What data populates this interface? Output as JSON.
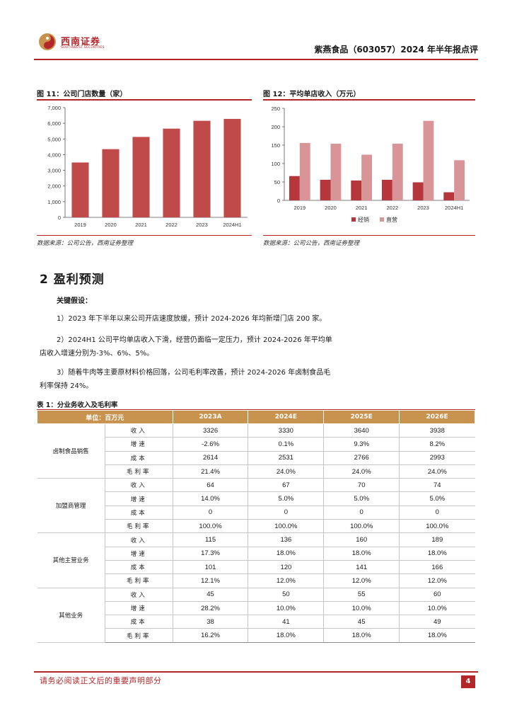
{
  "header": {
    "logo_name": "西南证券",
    "logo_sub": "SOUTHWEST SECURITIES",
    "report_title": "紫燕食品（603057）2024 年半年报点评"
  },
  "fig11": {
    "title": "图 11：公司门店数量（家）",
    "source": "数据来源：公司公告，西南证券整理"
  },
  "fig12": {
    "title": "图 12：平均单店收入（万元）",
    "source": "数据来源：公司公告，西南证券整理"
  },
  "chart_data": [
    {
      "type": "bar",
      "categories": [
        "2019",
        "2020",
        "2021",
        "2022",
        "2023",
        "2024H1"
      ],
      "values": [
        3500,
        4350,
        5130,
        5660,
        6160,
        6280
      ],
      "ylim": [
        0,
        7000
      ],
      "yticks": [
        "0",
        "1,000",
        "2,000",
        "3,000",
        "4,000",
        "5,000",
        "6,000",
        "7,000"
      ],
      "color": "#c04a4a",
      "legend": "none"
    },
    {
      "type": "bar",
      "categories": [
        "2019",
        "2020",
        "2021",
        "2022",
        "2023",
        "2024H1"
      ],
      "series": [
        {
          "name": "经销",
          "values": [
            66,
            56,
            54,
            56,
            49,
            22
          ],
          "color": "#b5373b"
        },
        {
          "name": "直营",
          "values": [
            156,
            154,
            124,
            154,
            216,
            109
          ],
          "color": "#d99498"
        }
      ],
      "ylim": [
        0,
        250
      ],
      "yticks": [
        "0",
        "50",
        "100",
        "150",
        "200",
        "250"
      ],
      "legend": "bottom"
    }
  ],
  "section": {
    "title": "2  盈利预测",
    "sub_title": "关键假设：",
    "assumptions": [
      "1）2023 年下半年以来公司开店速度放缓，预计 2024-2026 年均新增门店 200 家。",
      "2）2024H1 公司平均单店收入下滑，经营仍面临一定压力，预计 2024-2026 年平均单",
      "店收入增速分别为-3%、6%、5%。",
      "3）随着牛肉等主要原材料价格回落，公司毛利率改善，预计 2024-2026 年卤制食品毛",
      "利率保持 24%。"
    ]
  },
  "table": {
    "title": "表 1：分业务收入及毛利率",
    "header": [
      "单位：百万元",
      "2023A",
      "2024E",
      "2025E",
      "2026E"
    ],
    "groups": [
      {
        "name": "卤制食品销售",
        "rows": [
          {
            "metric": "收入",
            "values": [
              "3326",
              "3330",
              "3640",
              "3938"
            ]
          },
          {
            "metric": "增速",
            "values": [
              "-2.6%",
              "0.1%",
              "9.3%",
              "8.2%"
            ]
          },
          {
            "metric": "成本",
            "values": [
              "2614",
              "2531",
              "2766",
              "2993"
            ]
          },
          {
            "metric": "毛利率",
            "values": [
              "21.4%",
              "24.0%",
              "24.0%",
              "24.0%"
            ]
          }
        ]
      },
      {
        "name": "加盟商管理",
        "rows": [
          {
            "metric": "收入",
            "values": [
              "64",
              "67",
              "70",
              "74"
            ]
          },
          {
            "metric": "增速",
            "values": [
              "14.0%",
              "5.0%",
              "5.0%",
              "5.0%"
            ]
          },
          {
            "metric": "成本",
            "values": [
              "0",
              "0",
              "0",
              "0"
            ]
          },
          {
            "metric": "毛利率",
            "values": [
              "100.0%",
              "100.0%",
              "100.0%",
              "100.0%"
            ]
          }
        ]
      },
      {
        "name": "其他主营业务",
        "rows": [
          {
            "metric": "收入",
            "values": [
              "115",
              "136",
              "160",
              "189"
            ]
          },
          {
            "metric": "增速",
            "values": [
              "17.3%",
              "18.0%",
              "18.0%",
              "18.0%"
            ]
          },
          {
            "metric": "成本",
            "values": [
              "101",
              "120",
              "141",
              "166"
            ]
          },
          {
            "metric": "毛利率",
            "values": [
              "12.1%",
              "12.0%",
              "12.0%",
              "12.0%"
            ]
          }
        ]
      },
      {
        "name": "其他业务",
        "rows": [
          {
            "metric": "收入",
            "values": [
              "45",
              "50",
              "55",
              "60"
            ]
          },
          {
            "metric": "增速",
            "values": [
              "28.2%",
              "10.0%",
              "10.0%",
              "10.0%"
            ]
          },
          {
            "metric": "成本",
            "values": [
              "38",
              "41",
              "45",
              "49"
            ]
          },
          {
            "metric": "毛利率",
            "values": [
              "16.2%",
              "18.0%",
              "18.0%",
              "18.0%"
            ]
          }
        ]
      }
    ]
  },
  "footer": {
    "note": "请务必阅读正文后的重要声明部分",
    "page": "4"
  }
}
